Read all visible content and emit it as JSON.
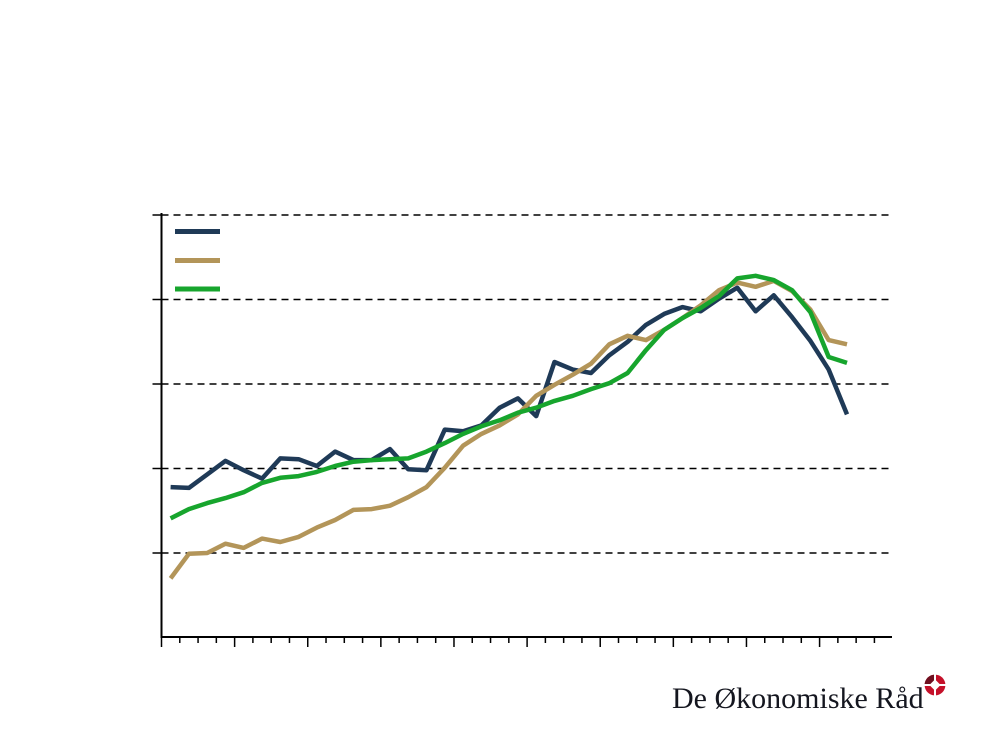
{
  "page": {
    "background_color": "#ffffff"
  },
  "chart_data": {
    "type": "line",
    "title": "",
    "x_axis": {
      "tick_labels_visible": false,
      "tick_count": 40,
      "major_tick_every": 4
    },
    "y_axis": {
      "tick_labels_visible": false,
      "gridline_values": [
        0,
        1,
        2,
        3,
        4
      ],
      "ylim": [
        -1,
        4.05
      ],
      "grid_style": "dashed"
    },
    "axis_color": "#000000",
    "series": [
      {
        "id": "navy",
        "color": "#1f3a57",
        "values": [
          0.78,
          0.77,
          0.93,
          1.09,
          0.98,
          0.88,
          1.12,
          1.11,
          1.03,
          1.2,
          1.1,
          1.1,
          1.23,
          0.99,
          0.98,
          1.46,
          1.44,
          1.51,
          1.72,
          1.83,
          1.62,
          2.26,
          2.17,
          2.13,
          2.34,
          2.5,
          2.7,
          2.83,
          2.91,
          2.86,
          3.01,
          3.14,
          2.86,
          3.05,
          2.79,
          2.51,
          2.17,
          1.64
        ]
      },
      {
        "id": "khaki",
        "color": "#b39559",
        "values": [
          -0.3,
          -0.01,
          0.0,
          0.11,
          0.06,
          0.17,
          0.13,
          0.19,
          0.3,
          0.39,
          0.51,
          0.52,
          0.56,
          0.66,
          0.78,
          1.01,
          1.27,
          1.41,
          1.51,
          1.64,
          1.86,
          1.99,
          2.11,
          2.24,
          2.47,
          2.57,
          2.52,
          2.64,
          2.78,
          2.93,
          3.11,
          3.2,
          3.15,
          3.22,
          3.1,
          2.88,
          2.52,
          2.47
        ]
      },
      {
        "id": "green",
        "color": "#17a52d",
        "values": [
          0.41,
          0.52,
          0.59,
          0.65,
          0.72,
          0.83,
          0.89,
          0.91,
          0.96,
          1.03,
          1.08,
          1.1,
          1.11,
          1.12,
          1.2,
          1.3,
          1.41,
          1.5,
          1.57,
          1.66,
          1.72,
          1.8,
          1.86,
          1.94,
          2.01,
          2.13,
          2.4,
          2.64,
          2.78,
          2.9,
          3.04,
          3.25,
          3.28,
          3.23,
          3.11,
          2.85,
          2.32,
          2.25
        ]
      }
    ],
    "legend": {
      "position": "top-left",
      "labels_visible": false,
      "entries": [
        {
          "swatch_color": "#1f3a57",
          "label": ""
        },
        {
          "swatch_color": "#b39559",
          "label": ""
        },
        {
          "swatch_color": "#17a52d",
          "label": ""
        }
      ]
    }
  },
  "footer": {
    "logo_text": "De Økonomiske Råd",
    "logo_text_color": "#14161f",
    "icon": {
      "name": "red-rosette-icon",
      "main_color": "#c5112a",
      "dark_color": "#6e1020"
    }
  }
}
